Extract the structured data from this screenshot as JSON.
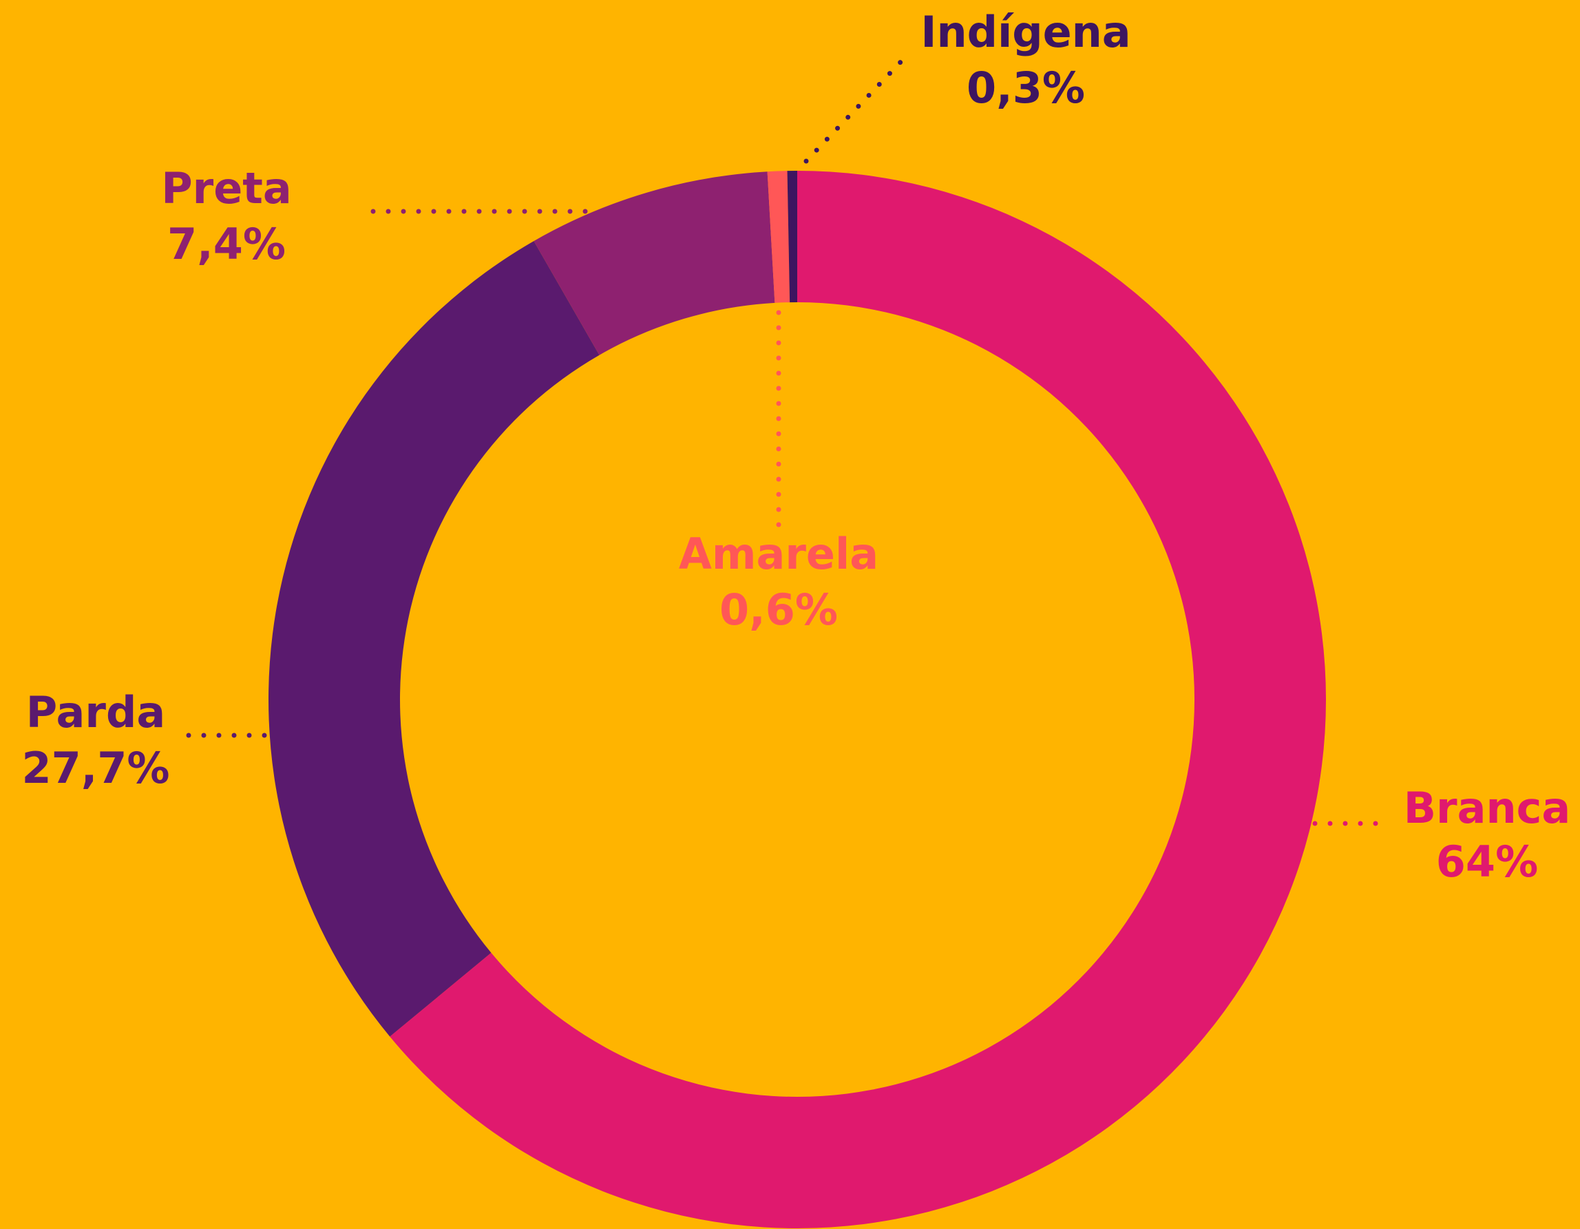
{
  "chart_data": {
    "type": "donut",
    "categories": [
      "Branca",
      "Parda",
      "Preta",
      "Amarela",
      "Indígena"
    ],
    "values": [
      64,
      27.7,
      7.4,
      0.6,
      0.3
    ],
    "value_labels": [
      "64%",
      "27,7%",
      "7,4%",
      "0,6%",
      "0,3%"
    ],
    "colors": [
      "#e0196e",
      "#5a1a6e",
      "#8e2170",
      "#ff5757",
      "#3d1560"
    ]
  }
}
